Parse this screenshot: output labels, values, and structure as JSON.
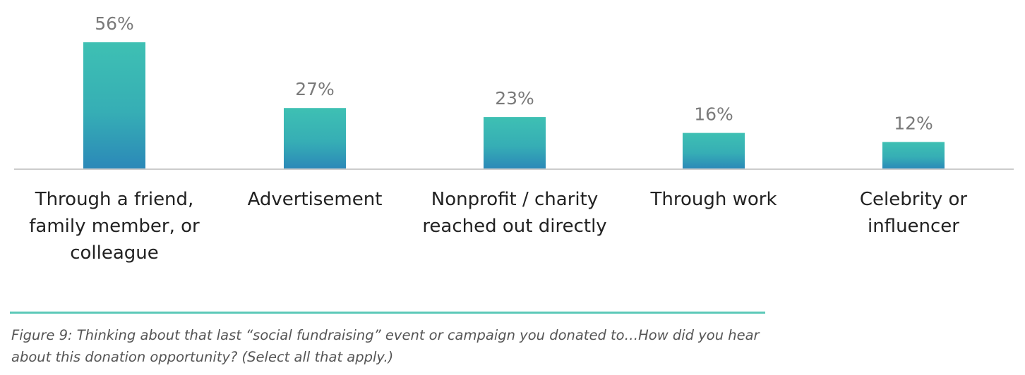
{
  "chart_data": {
    "type": "bar",
    "categories": [
      [
        "Through a friend,",
        "family member, or",
        "colleague"
      ],
      [
        "Advertisement"
      ],
      [
        "Nonprofit / charity",
        "reached out directly"
      ],
      [
        "Through work"
      ],
      [
        "Celebrity or",
        "influencer"
      ]
    ],
    "values": [
      56,
      27,
      23,
      16,
      12
    ],
    "value_labels": [
      "56%",
      "27%",
      "23%",
      "16%",
      "12%"
    ],
    "ylim": [
      0,
      56
    ],
    "grid": false,
    "bar_gradient": [
      "#3ec0b3",
      "#2b88b8"
    ],
    "baseline_color": "#cccccc"
  },
  "caption": "Figure 9: Thinking about that last “social fundraising” event or campaign you donated to…How did you hear about this donation opportunity? (Select all that apply.)",
  "colors": {
    "divider": "#5cc9b8",
    "caption_text": "#555555",
    "value_text": "#7a7a7a",
    "category_text": "#222222"
  }
}
